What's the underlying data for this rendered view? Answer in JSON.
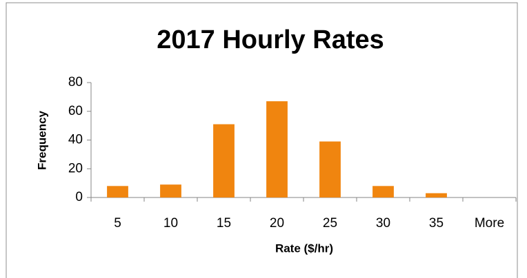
{
  "chart_data": {
    "type": "bar",
    "title": "2017 Hourly Rates",
    "x_label": "Rate ($/hr)",
    "y_label": "Frequency",
    "categories": [
      "5",
      "10",
      "15",
      "20",
      "25",
      "30",
      "35",
      "More"
    ],
    "values": [
      8,
      9,
      51,
      67,
      39,
      8,
      3,
      0
    ],
    "color": "#f0850f",
    "ylim": [
      0,
      80
    ],
    "yticks": [
      0,
      20,
      40,
      60,
      80
    ],
    "grid": false
  }
}
